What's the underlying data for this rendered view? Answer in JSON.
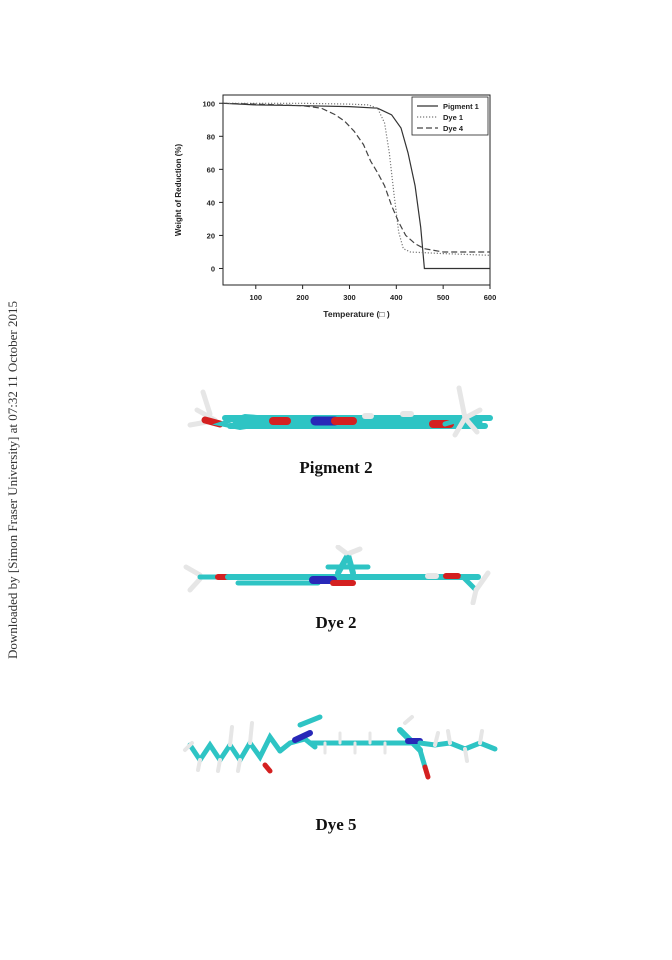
{
  "watermark": "Downloaded by [Simon Fraser University] at 07:32 11 October 2015",
  "chart_data": {
    "type": "line",
    "xlabel": "Temperature (□ )",
    "ylabel": "Weight of Reduction (%)",
    "xlim": [
      30,
      600
    ],
    "ylim": [
      -10,
      105
    ],
    "xticks": [
      100,
      200,
      300,
      400,
      500,
      600
    ],
    "yticks": [
      0,
      20,
      40,
      60,
      80,
      100
    ],
    "legend_position": "top-right",
    "grid": false,
    "series": [
      {
        "name": "Pigment 1",
        "style": "solid",
        "points": [
          [
            30,
            100
          ],
          [
            100,
            99
          ],
          [
            200,
            98.5
          ],
          [
            300,
            98
          ],
          [
            360,
            97
          ],
          [
            390,
            93
          ],
          [
            410,
            85
          ],
          [
            425,
            70
          ],
          [
            440,
            50
          ],
          [
            452,
            25
          ],
          [
            460,
            0
          ],
          [
            600,
            0
          ]
        ]
      },
      {
        "name": "Dye 1",
        "style": "dotted",
        "points": [
          [
            30,
            100
          ],
          [
            100,
            100
          ],
          [
            200,
            100
          ],
          [
            300,
            99.5
          ],
          [
            340,
            99
          ],
          [
            360,
            97
          ],
          [
            375,
            88
          ],
          [
            385,
            70
          ],
          [
            395,
            45
          ],
          [
            405,
            22
          ],
          [
            415,
            12
          ],
          [
            430,
            10
          ],
          [
            500,
            9
          ],
          [
            600,
            8
          ]
        ]
      },
      {
        "name": "Dye 4",
        "style": "dashed",
        "points": [
          [
            30,
            100
          ],
          [
            100,
            99.5
          ],
          [
            200,
            98.5
          ],
          [
            240,
            97
          ],
          [
            270,
            93
          ],
          [
            290,
            89
          ],
          [
            310,
            83
          ],
          [
            330,
            75
          ],
          [
            345,
            65
          ],
          [
            360,
            58
          ],
          [
            375,
            50
          ],
          [
            390,
            38
          ],
          [
            405,
            28
          ],
          [
            420,
            20
          ],
          [
            440,
            15
          ],
          [
            460,
            12
          ],
          [
            500,
            10
          ],
          [
            600,
            10
          ]
        ]
      }
    ]
  },
  "figures": [
    {
      "caption": "Pigment 2"
    },
    {
      "caption": "Dye 2"
    },
    {
      "caption": "Dye 5"
    }
  ],
  "colors": {
    "carbon": "#2ec4c4",
    "oxygen": "#d42020",
    "nitrogen": "#2828b8",
    "hydrogen": "#e6e6e6"
  }
}
